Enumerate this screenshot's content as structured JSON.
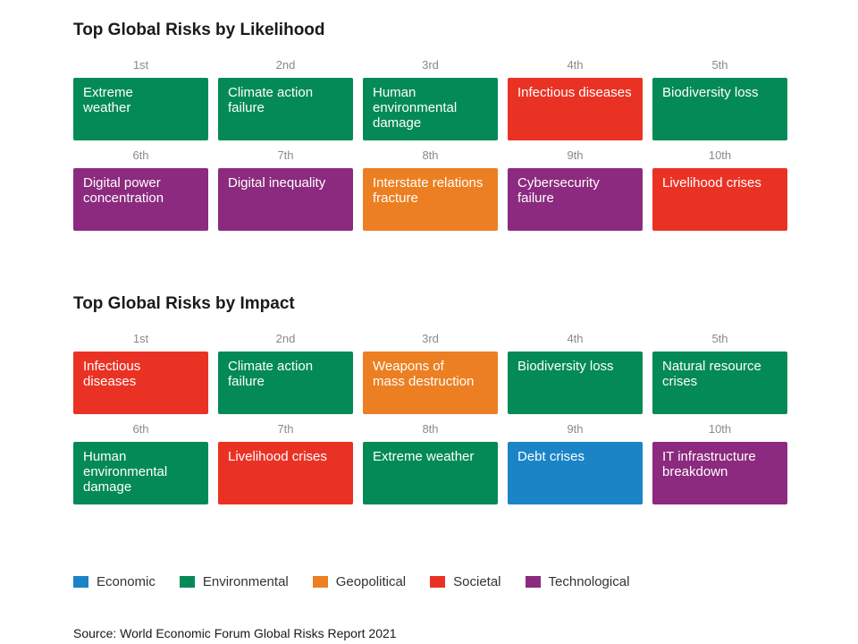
{
  "chart_data": {
    "type": "table",
    "colors": {
      "Economic": "#1a84c7",
      "Environmental": "#048a56",
      "Geopolitical": "#ec7f22",
      "Societal": "#ea3224",
      "Technological": "#8b2a7e"
    },
    "sections": [
      {
        "title_bold": "Top Global Risks",
        "title_rest": " by Likelihood",
        "items": [
          {
            "rank": "1st",
            "lines": [
              "Extreme",
              "weather"
            ],
            "category": "Environmental"
          },
          {
            "rank": "2nd",
            "lines": [
              "Climate action",
              "failure"
            ],
            "category": "Environmental"
          },
          {
            "rank": "3rd",
            "lines": [
              "Human",
              "environmental",
              "damage"
            ],
            "category": "Environmental"
          },
          {
            "rank": "4th",
            "lines": [
              "Infectious diseases"
            ],
            "category": "Societal"
          },
          {
            "rank": "5th",
            "lines": [
              "Biodiversity loss"
            ],
            "category": "Environmental"
          },
          {
            "rank": "6th",
            "lines": [
              "Digital power",
              "concentration"
            ],
            "category": "Technological"
          },
          {
            "rank": "7th",
            "lines": [
              "Digital inequality"
            ],
            "category": "Technological"
          },
          {
            "rank": "8th",
            "lines": [
              "Interstate relations",
              "fracture"
            ],
            "category": "Geopolitical"
          },
          {
            "rank": "9th",
            "lines": [
              "Cybersecurity failure"
            ],
            "category": "Technological"
          },
          {
            "rank": "10th",
            "lines": [
              "Livelihood crises"
            ],
            "category": "Societal"
          }
        ]
      },
      {
        "title_bold": "Top Global Risks",
        "title_rest": " by Impact",
        "items": [
          {
            "rank": "1st",
            "lines": [
              "Infectious",
              "diseases"
            ],
            "category": "Societal"
          },
          {
            "rank": "2nd",
            "lines": [
              "Climate action",
              "failure"
            ],
            "category": "Environmental"
          },
          {
            "rank": "3rd",
            "lines": [
              "Weapons of",
              "mass destruction"
            ],
            "category": "Geopolitical"
          },
          {
            "rank": "4th",
            "lines": [
              "Biodiversity loss"
            ],
            "category": "Environmental"
          },
          {
            "rank": "5th",
            "lines": [
              "Natural resource",
              "crises"
            ],
            "category": "Environmental"
          },
          {
            "rank": "6th",
            "lines": [
              "Human",
              "environmental",
              "damage"
            ],
            "category": "Environmental"
          },
          {
            "rank": "7th",
            "lines": [
              "Livelihood crises"
            ],
            "category": "Societal"
          },
          {
            "rank": "8th",
            "lines": [
              "Extreme weather"
            ],
            "category": "Environmental"
          },
          {
            "rank": "9th",
            "lines": [
              "Debt crises"
            ],
            "category": "Economic"
          },
          {
            "rank": "10th",
            "lines": [
              "IT infrastructure",
              "breakdown"
            ],
            "category": "Technological"
          }
        ]
      }
    ],
    "legend": [
      "Economic",
      "Environmental",
      "Geopolitical",
      "Societal",
      "Technological"
    ],
    "source": "Source: World Economic Forum Global Risks Report 2021"
  }
}
